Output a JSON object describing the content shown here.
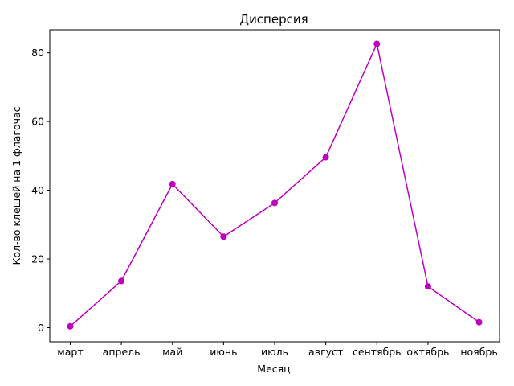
{
  "chart_data": {
    "type": "line",
    "title": "Дисперсия",
    "xlabel": "Месяц",
    "ylabel": "Кол-во клещей на 1 флагочас",
    "categories": [
      "март",
      "апрель",
      "май",
      "июнь",
      "июль",
      "август",
      "сентябрь",
      "октябрь",
      "ноябрь"
    ],
    "series": [
      {
        "values": [
          0.4,
          13.6,
          41.8,
          26.5,
          36.3,
          49.6,
          82.6,
          12.0,
          1.6
        ],
        "color": "#bf00bf",
        "marker": "circle"
      }
    ],
    "ylim": [
      -4.1,
      86.7
    ],
    "yticks": [
      0,
      20,
      40,
      60,
      80
    ],
    "grid": false
  }
}
